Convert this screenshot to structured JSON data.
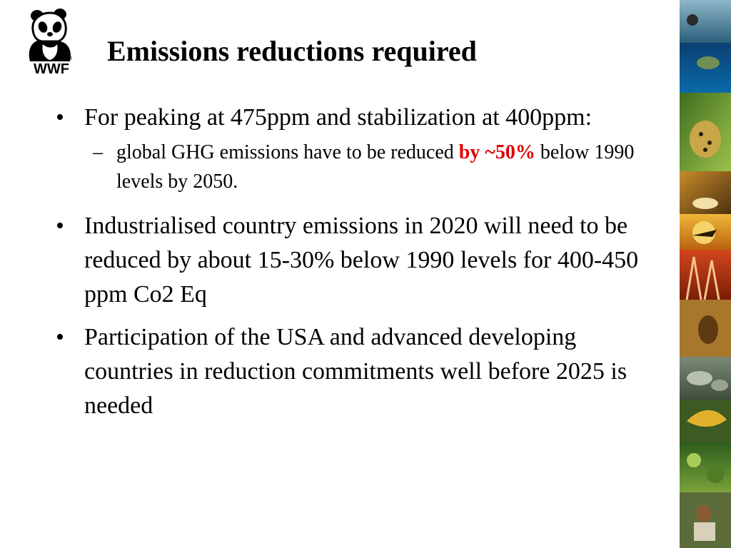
{
  "logo": {
    "text": "WWF"
  },
  "title": "Emissions reductions required",
  "bullets": [
    {
      "dot": "•",
      "text": "For peaking at 475ppm and stabilization at 400ppm:",
      "sub": {
        "dash": "–",
        "text_before": "global GHG emissions have to be reduced ",
        "highlight": "by ~50%",
        "text_after": " below 1990 levels by 2050."
      }
    },
    {
      "dot": "•",
      "text": "Industrialised country emissions in 2020 will need to be reduced by about 15-30% below 1990 levels for 400-450 ppm Co2 Eq"
    },
    {
      "dot": "•",
      "text": "Participation of the USA and advanced developing countries in reduction commitments well before 2025 is needed"
    }
  ],
  "colors": {
    "highlight": "#e00000",
    "text": "#000000",
    "background": "#ffffff"
  },
  "icons": {
    "logo": "panda-icon"
  }
}
